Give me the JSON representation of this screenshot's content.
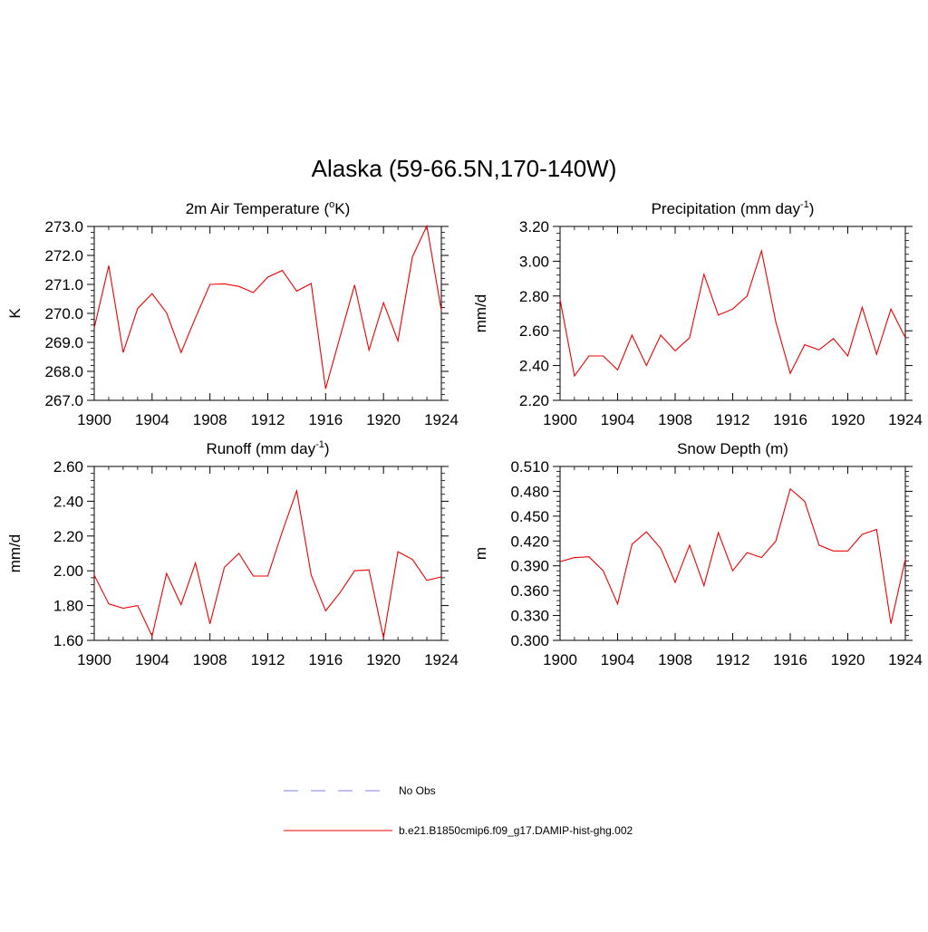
{
  "figure": {
    "title": "Alaska (59-66.5N,170-140W)"
  },
  "legend": {
    "obs_label": "No Obs",
    "obs_color": "#9999ee",
    "model_label": "b.e21.B1850cmip6.f09_g17.DAMIP-hist-ghg.002",
    "model_color": "#ee3333"
  },
  "chart_data": [
    {
      "type": "line",
      "title_main": "2m Air Temperature (",
      "title_sup": "o",
      "title_tail": "K)",
      "ylabel": "K",
      "xlim": [
        1900,
        1924
      ],
      "ylim": [
        267.0,
        273.0
      ],
      "yticks": [
        "267.0",
        "268.0",
        "269.0",
        "270.0",
        "271.0",
        "272.0",
        "273.0"
      ],
      "xticks": [
        "1900",
        "1904",
        "1908",
        "1912",
        "1916",
        "1920",
        "1924"
      ],
      "line_color": "#ee0000",
      "series": [
        {
          "x": [
            1900,
            1901,
            1902,
            1903,
            1904,
            1905,
            1906,
            1907,
            1908,
            1909,
            1910,
            1911,
            1912,
            1913,
            1914,
            1915,
            1916,
            1917,
            1918,
            1919,
            1920,
            1921,
            1922,
            1923,
            1924
          ],
          "values": [
            269.5,
            271.65,
            268.65,
            270.17,
            270.68,
            270.02,
            268.65,
            269.85,
            271.0,
            271.02,
            270.93,
            270.72,
            271.25,
            271.48,
            270.77,
            271.03,
            267.4,
            269.2,
            270.98,
            268.73,
            270.37,
            269.05,
            271.95,
            273.02,
            270.1
          ]
        }
      ]
    },
    {
      "type": "line",
      "title_main": "Precipitation (mm day",
      "title_sup": "-1",
      "title_tail": ")",
      "ylabel": "mm/d",
      "xlim": [
        1900,
        1924
      ],
      "ylim": [
        2.2,
        3.2
      ],
      "yticks": [
        "2.20",
        "2.40",
        "2.60",
        "2.80",
        "3.00",
        "3.20"
      ],
      "xticks": [
        "1900",
        "1904",
        "1908",
        "1912",
        "1916",
        "1920",
        "1924"
      ],
      "line_color": "#ee0000",
      "series": [
        {
          "x": [
            1900,
            1901,
            1902,
            1903,
            1904,
            1905,
            1906,
            1907,
            1908,
            1909,
            1910,
            1911,
            1912,
            1913,
            1914,
            1915,
            1916,
            1917,
            1918,
            1919,
            1920,
            1921,
            1922,
            1923,
            1924
          ],
          "values": [
            2.78,
            2.34,
            2.455,
            2.455,
            2.375,
            2.575,
            2.4,
            2.575,
            2.485,
            2.56,
            2.925,
            2.69,
            2.725,
            2.8,
            3.06,
            2.65,
            2.355,
            2.52,
            2.49,
            2.555,
            2.455,
            2.735,
            2.465,
            2.725,
            2.56
          ]
        }
      ]
    },
    {
      "type": "line",
      "title_main": "Runoff (mm day",
      "title_sup": "-1",
      "title_tail": ")",
      "ylabel": "mm/d",
      "xlim": [
        1900,
        1924
      ],
      "ylim": [
        1.6,
        2.6
      ],
      "yticks": [
        "1.60",
        "1.80",
        "2.00",
        "2.20",
        "2.40",
        "2.60"
      ],
      "xticks": [
        "1900",
        "1904",
        "1908",
        "1912",
        "1916",
        "1920",
        "1924"
      ],
      "line_color": "#ee0000",
      "series": [
        {
          "x": [
            1900,
            1901,
            1902,
            1903,
            1904,
            1905,
            1906,
            1907,
            1908,
            1909,
            1910,
            1911,
            1912,
            1913,
            1914,
            1915,
            1916,
            1917,
            1918,
            1919,
            1920,
            1921,
            1922,
            1923,
            1924
          ],
          "values": [
            1.975,
            1.81,
            1.785,
            1.8,
            1.625,
            1.985,
            1.805,
            2.045,
            1.695,
            2.02,
            2.1,
            1.97,
            1.97,
            2.225,
            2.46,
            1.975,
            1.77,
            1.875,
            2.0,
            2.005,
            1.615,
            2.11,
            2.065,
            1.945,
            1.965
          ]
        }
      ]
    },
    {
      "type": "line",
      "title_main": "Snow Depth (m)",
      "title_sup": "",
      "title_tail": "",
      "ylabel": "m",
      "xlim": [
        1900,
        1924
      ],
      "ylim": [
        0.3,
        0.51
      ],
      "yticks": [
        "0.300",
        "0.330",
        "0.360",
        "0.390",
        "0.420",
        "0.450",
        "0.480",
        "0.510"
      ],
      "xticks": [
        "1900",
        "1904",
        "1908",
        "1912",
        "1916",
        "1920",
        "1924"
      ],
      "line_color": "#ee0000",
      "series": [
        {
          "x": [
            1900,
            1901,
            1902,
            1903,
            1904,
            1905,
            1906,
            1907,
            1908,
            1909,
            1910,
            1911,
            1912,
            1913,
            1914,
            1915,
            1916,
            1917,
            1918,
            1919,
            1920,
            1921,
            1922,
            1923,
            1924
          ],
          "values": [
            0.395,
            0.4,
            0.401,
            0.384,
            0.344,
            0.416,
            0.431,
            0.411,
            0.37,
            0.415,
            0.366,
            0.43,
            0.384,
            0.406,
            0.4,
            0.42,
            0.483,
            0.468,
            0.415,
            0.408,
            0.408,
            0.428,
            0.434,
            0.32,
            0.398
          ]
        }
      ]
    }
  ]
}
